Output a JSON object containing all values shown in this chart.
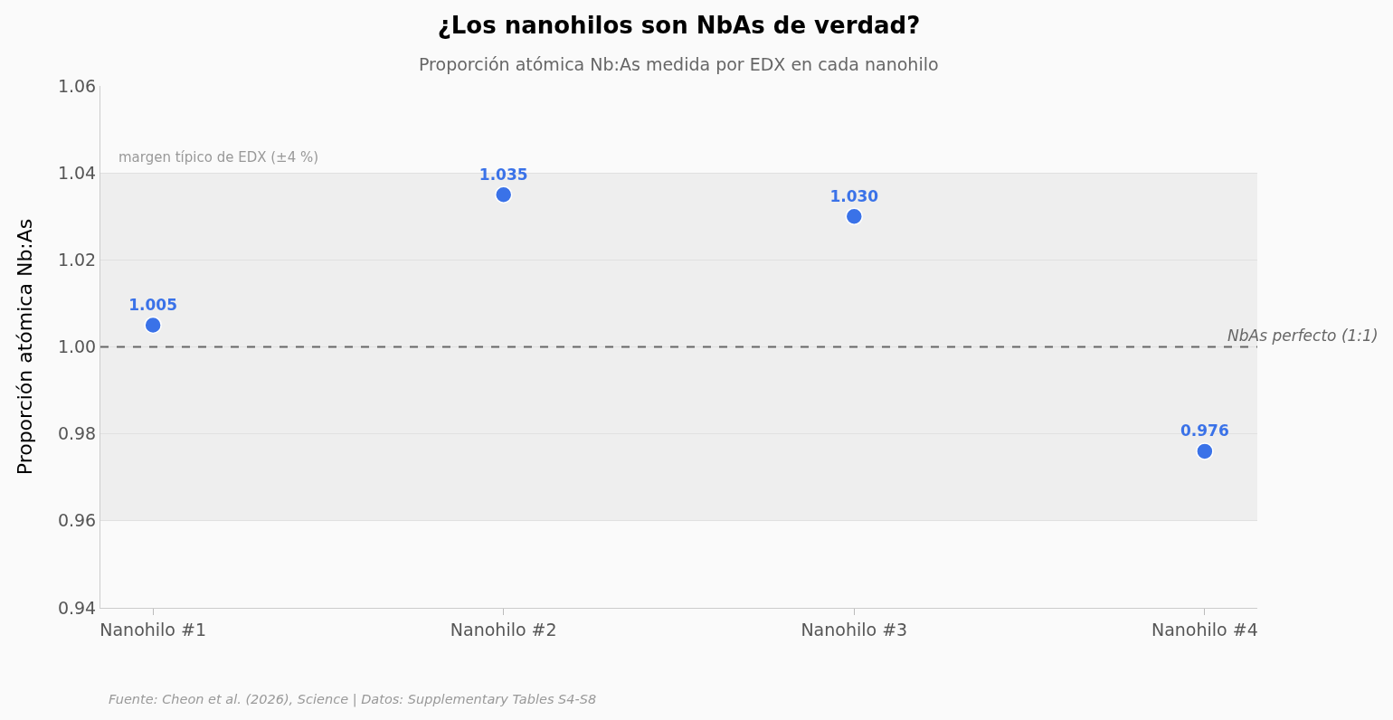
{
  "chart_data": {
    "type": "scatter",
    "title": "¿Los nanohilos son NbAs de verdad?",
    "subtitle": "Proporción atómica Nb:As medida por EDX en cada nanohilo",
    "ylabel": "Proporción atómica Nb:As",
    "annotations": [
      "Fuente: Cheon et al. (2026), Science | Datos: Supplementary Tables S4-S8"
    ],
    "categories": [
      "Nanohilo #1",
      "Nanohilo #2",
      "Nanohilo #3",
      "Nanohilo #4"
    ],
    "series": [
      {
        "color": "#3a72e8",
        "values": [
          1.005,
          1.035,
          1.03,
          0.976
        ],
        "value_labels": [
          "1.005",
          "1.035",
          "1.030",
          "0.976"
        ]
      }
    ],
    "ylim": [
      0.94,
      1.06
    ],
    "yticks": [
      0.94,
      0.96,
      0.98,
      {
        "value": 1,
        "label": "1.00"
      },
      1.02,
      1.04,
      1.06
    ],
    "grid": "y",
    "marker": "circle",
    "ref_lines": [
      {
        "axis": "y",
        "value": 1,
        "label": "NbAs perfecto (1:1)",
        "color": "#666666",
        "line_style": "dashed"
      }
    ],
    "bands": [
      {
        "axis": "y",
        "from": 0.96,
        "to": 1.04,
        "label": "margen típico de EDX (±4 %)",
        "color": "#eeeeee"
      }
    ]
  }
}
